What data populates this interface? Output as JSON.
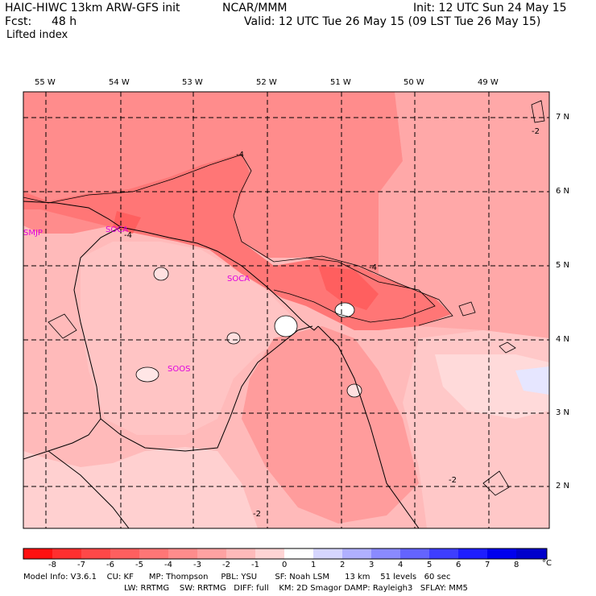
{
  "header": {
    "model": "HAIC-HIWC 13km ARW-GFS init",
    "org": "NCAR/MMM",
    "fcst_label": "Fcst:",
    "fcst_value": "48 h",
    "init": "Init: 12 UTC Sun 24 May 15",
    "valid": "Valid: 12 UTC Tue 26 May 15 (09 LST Tue 26 May 15)",
    "field": "Lifted index"
  },
  "map": {
    "lon_labels": [
      "55 W",
      "54 W",
      "53 W",
      "52 W",
      "51 W",
      "50 W",
      "49 W"
    ],
    "lat_labels": [
      "7 N",
      "6 N",
      "5 N",
      "4 N",
      "3 N",
      "2 N"
    ],
    "stations": [
      "SMJP",
      "SOCA",
      "SOCA",
      "SOOS"
    ],
    "contour_labels": [
      "-4",
      "-4",
      "-4",
      "-2",
      "-2",
      "-2"
    ]
  },
  "colorbar": {
    "ticks": [
      "-8",
      "-7",
      "-6",
      "-5",
      "-4",
      "-3",
      "-2",
      "-1",
      "0",
      "1",
      "2",
      "3",
      "4",
      "5",
      "6",
      "7",
      "8"
    ],
    "unit": "°C",
    "colors": [
      "#ff1010",
      "#ff2f2f",
      "#ff4848",
      "#ff5f5f",
      "#ff7676",
      "#ff8c8c",
      "#ffa2a2",
      "#ffbaba",
      "#ffd4d4",
      "#ffffff",
      "#ffffff",
      "#d6d6ff",
      "#b0b0ff",
      "#8a8aff",
      "#6464ff",
      "#3e3eff",
      "#1e1eff",
      "#0000ee"
    ]
  },
  "footer": {
    "line1": "Model Info: V3.6.1    CU: KF      MP: Thompson     PBL: YSU       SF: Noah LSM      13 km    51 levels   60 sec",
    "line2": "LW: RRTMG    SW: RRTMG   DIFF: full    KM: 2D Smagor DAMP: Rayleigh3   SFLAY: MM5"
  }
}
